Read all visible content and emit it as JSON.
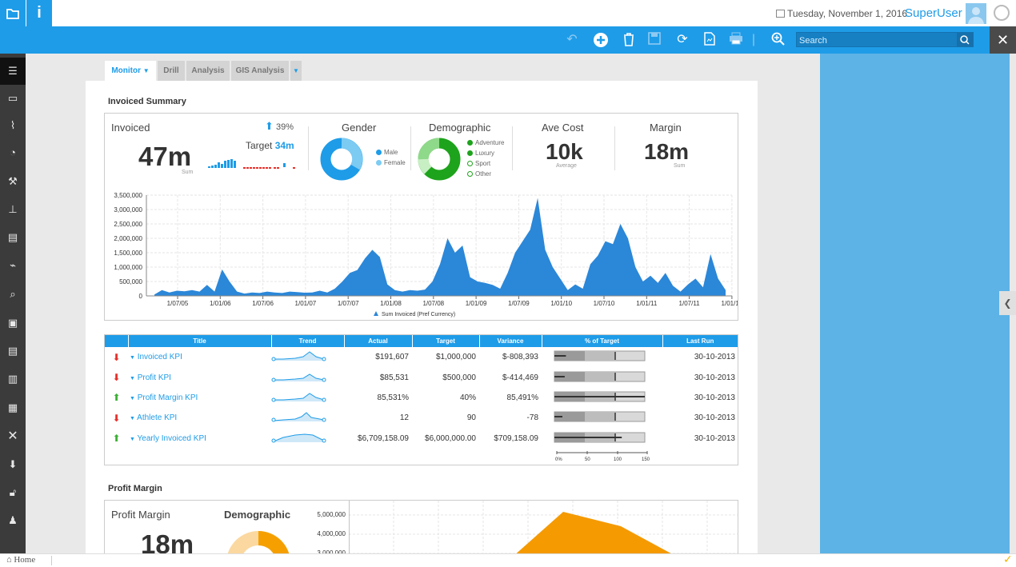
{
  "header": {
    "date": "Tuesday, November 1, 2016",
    "user": "SuperUser",
    "info_glyph": "i"
  },
  "toolbar": {
    "search_placeholder": "Search",
    "close_glyph": "✕"
  },
  "tabs": [
    "Monitor",
    "Drill",
    "Analysis",
    "GIS Analysis"
  ],
  "invoiced_summary": {
    "title": "Invoiced Summary",
    "invoiced": {
      "label": "Invoiced",
      "value": "47m",
      "sub": "Sum",
      "change": "39%",
      "target_label": "Target",
      "target_value": "34m"
    },
    "gender": {
      "label": "Gender",
      "legend": [
        "Male",
        "Female"
      ]
    },
    "demographic": {
      "label": "Demographic",
      "legend": [
        "Adventure",
        "Luxury",
        "Sport",
        "Other"
      ]
    },
    "ave_cost": {
      "label": "Ave Cost",
      "value": "10k",
      "sub": "Average"
    },
    "margin": {
      "label": "Margin",
      "value": "18m",
      "sub": "Sum"
    }
  },
  "chart_data": {
    "type": "area",
    "legend": "Sum Invoiced (Pref Currency)",
    "y_ticks": [
      "3,500,000",
      "3,000,000",
      "2,500,000",
      "2,000,000",
      "1,500,000",
      "1,000,000",
      "500,000",
      "0"
    ],
    "x_ticks": [
      "1/07/05",
      "1/01/06",
      "1/07/06",
      "1/01/07",
      "1/07/07",
      "1/01/08",
      "1/07/08",
      "1/01/09",
      "1/07/09",
      "1/01/10",
      "1/07/10",
      "1/01/11",
      "1/07/11",
      "1/01/12"
    ],
    "ylim": [
      0,
      3500000
    ],
    "series": [
      {
        "values": [
          50000,
          200000,
          120000,
          180000,
          160000,
          200000,
          150000,
          380000,
          150000,
          920000,
          500000,
          150000,
          80000,
          120000,
          100000,
          150000,
          120000,
          100000,
          150000,
          130000,
          110000,
          120000,
          180000,
          120000,
          250000,
          500000,
          800000,
          900000,
          1300000,
          1600000,
          1350000,
          400000,
          200000,
          150000,
          200000,
          180000,
          220000,
          500000,
          1100000,
          2000000,
          1500000,
          1750000,
          650000,
          500000,
          450000,
          380000,
          250000,
          800000,
          1500000,
          1900000,
          2300000,
          3400000,
          1600000,
          1000000,
          600000,
          200000,
          400000,
          250000,
          1100000,
          1400000,
          1900000,
          1800000,
          2500000,
          2000000,
          1000000,
          500000,
          700000,
          450000,
          800000,
          350000,
          150000,
          400000,
          600000,
          300000,
          1450000,
          600000,
          200000
        ]
      }
    ]
  },
  "kpi_table": {
    "headers": [
      "Title",
      "Trend",
      "Actual",
      "Target",
      "Variance",
      "% of Target",
      "Last Run"
    ],
    "rows": [
      {
        "status": "down",
        "title": "Invoiced KPI",
        "actual": "$191,607",
        "target": "$1,000,000",
        "variance": "$-808,393",
        "pct": 19.16,
        "last_run": "30-10-2013"
      },
      {
        "status": "down",
        "title": "Profit KPI",
        "actual": "$85,531",
        "target": "$500,000",
        "variance": "$-414,469",
        "pct": 17.1,
        "last_run": "30-10-2013"
      },
      {
        "status": "up",
        "title": "Profit Margin KPI",
        "actual": "85,531%",
        "target": "40%",
        "variance": "85,491%",
        "pct": 150,
        "last_run": "30-10-2013"
      },
      {
        "status": "down",
        "title": "Athlete KPI",
        "actual": "12",
        "target": "90",
        "variance": "-78",
        "pct": 13.3,
        "last_run": "30-10-2013"
      },
      {
        "status": "up",
        "title": "Yearly Invoiced KPI",
        "actual": "$6,709,158.09",
        "target": "$6,000,000.00",
        "variance": "$709,158.09",
        "pct": 111.8,
        "last_run": "30-10-2013"
      }
    ],
    "scale": [
      "0%",
      "50",
      "100",
      "150"
    ]
  },
  "profit_margin": {
    "title": "Profit Margin",
    "pm_label": "Profit Margin",
    "pm_value": "18m",
    "demo_label": "Demographic",
    "y_ticks": [
      "5,000,000",
      "4,000,000",
      "3,000,000"
    ]
  },
  "status_bar": {
    "home": "Home"
  },
  "colors": {
    "accent": "#1e9ce8",
    "area": "#2b87d8",
    "up": "#3cb034",
    "down": "#e8302a",
    "orange": "#f5a000"
  }
}
